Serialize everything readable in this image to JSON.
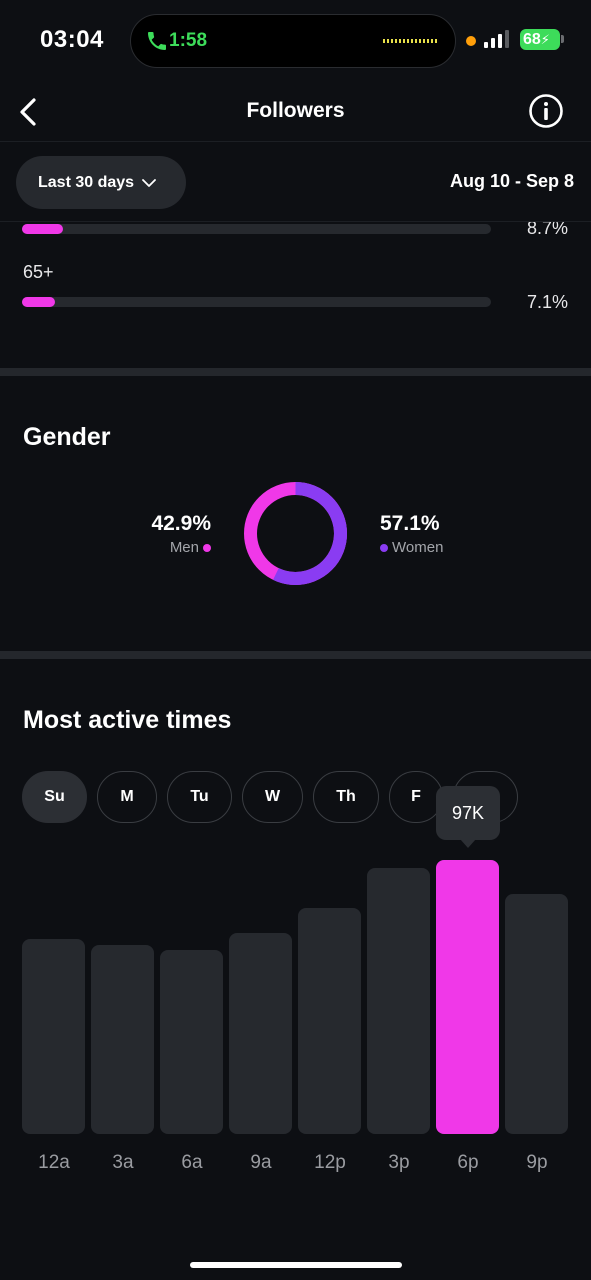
{
  "status_bar": {
    "time": "03:04",
    "call_time": "1:58",
    "battery": "68"
  },
  "header": {
    "title": "Followers"
  },
  "filter": {
    "range_label": "Last 30 days",
    "date_range": "Aug 10 - Sep 8"
  },
  "age": {
    "rows": [
      {
        "label": "",
        "percent_text": "8.7%",
        "value": 8.7
      },
      {
        "label": "65+",
        "percent_text": "7.1%",
        "value": 7.1
      }
    ]
  },
  "gender": {
    "title": "Gender",
    "men": {
      "percent_text": "42.9%",
      "label": "Men",
      "value": 42.9,
      "color": "#f038e8"
    },
    "women": {
      "percent_text": "57.1%",
      "label": "Women",
      "value": 57.1,
      "color": "#8a3cf2"
    }
  },
  "active_times": {
    "title": "Most active times",
    "days": [
      "Su",
      "M",
      "Tu",
      "W",
      "Th",
      "F",
      "Sa"
    ],
    "selected_day": "Su",
    "tooltip": "97K",
    "highlight_color": "#f038e8"
  },
  "chart_data": {
    "type": "bar",
    "categories": [
      "12a",
      "3a",
      "6a",
      "9a",
      "12p",
      "3p",
      "6p",
      "9p"
    ],
    "values": [
      69,
      67,
      65,
      71,
      80,
      94,
      97,
      85
    ],
    "highlight_index": 6,
    "highlight_label": "97K",
    "ylim": [
      0,
      97
    ]
  }
}
